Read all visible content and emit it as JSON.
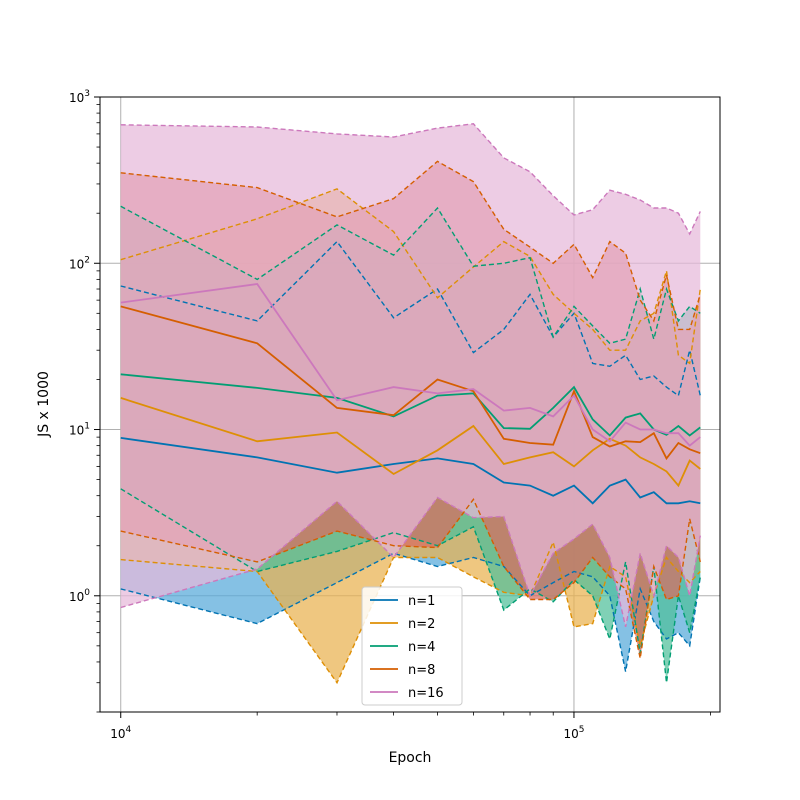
{
  "chart_data": {
    "type": "line",
    "xlabel": "Epoch",
    "ylabel": "JS x 1000",
    "x_scale": "log",
    "y_scale": "log",
    "xlim": [
      9000,
      210000
    ],
    "ylim": [
      0.2,
      1000
    ],
    "x_major_ticks": [
      10000,
      100000
    ],
    "x_major_tick_labels": [
      {
        "base": "10",
        "exp": "4"
      },
      {
        "base": "10",
        "exp": "5"
      }
    ],
    "x_minor_ticks": [
      20000,
      30000,
      40000,
      50000,
      60000,
      70000,
      80000,
      90000,
      200000
    ],
    "y_major_ticks": [
      1,
      10,
      100,
      1000
    ],
    "y_major_tick_labels": [
      {
        "base": "10",
        "exp": "0"
      },
      {
        "base": "10",
        "exp": "1"
      },
      {
        "base": "10",
        "exp": "2"
      },
      {
        "base": "10",
        "exp": "3"
      }
    ],
    "y_minor_ticks": [
      0.2,
      0.3,
      0.4,
      0.5,
      0.6,
      0.7,
      0.8,
      0.9,
      2,
      3,
      4,
      5,
      6,
      7,
      8,
      9,
      20,
      30,
      40,
      50,
      60,
      70,
      80,
      90,
      200,
      300,
      400,
      500,
      600,
      700,
      800,
      900
    ],
    "grid": true,
    "legend_position": "lower-center",
    "x": [
      10000,
      20000,
      30000,
      40000,
      50000,
      60000,
      70000,
      80000,
      90000,
      100000,
      110000,
      120000,
      130000,
      140000,
      150000,
      160000,
      170000,
      180000,
      190000
    ],
    "series": [
      {
        "name": "n=1",
        "color": "#0173b2",
        "fill_color": "#56a9d9",
        "values": [
          8.9,
          6.8,
          5.5,
          6.2,
          6.7,
          6.2,
          4.8,
          4.6,
          4.0,
          4.6,
          3.6,
          4.6,
          5.0,
          3.9,
          4.2,
          3.6,
          3.6,
          3.7,
          3.6
        ],
        "upper": [
          73,
          45,
          135,
          47,
          70,
          29,
          40,
          65,
          36,
          50,
          25,
          24,
          28,
          20,
          21,
          18,
          16,
          30,
          16
        ],
        "lower": [
          1.1,
          0.68,
          1.2,
          1.8,
          1.5,
          1.7,
          1.5,
          1.0,
          1.2,
          1.4,
          1.3,
          1.0,
          0.35,
          1.1,
          0.7,
          0.55,
          0.6,
          0.5,
          1.3
        ]
      },
      {
        "name": "n=2",
        "color": "#de8f05",
        "fill_color": "#e9b24f",
        "values": [
          15.5,
          8.5,
          9.6,
          5.4,
          7.5,
          10.5,
          6.2,
          6.8,
          7.3,
          6.0,
          7.5,
          8.8,
          8.0,
          6.8,
          6.2,
          5.6,
          4.6,
          6.5,
          5.8
        ],
        "upper": [
          105,
          185,
          280,
          155,
          62,
          95,
          135,
          110,
          65,
          50,
          40,
          30,
          30,
          45,
          50,
          90,
          28,
          25,
          70
        ],
        "lower": [
          1.65,
          1.4,
          0.3,
          1.7,
          1.7,
          1.3,
          1.05,
          1.0,
          2.1,
          0.65,
          0.68,
          1.5,
          1.3,
          0.5,
          1.0,
          1.7,
          1.4,
          1.2,
          1.4
        ]
      },
      {
        "name": "n=4",
        "color": "#029e73",
        "fill_color": "#4fbf9a",
        "values": [
          21.5,
          17.8,
          15.5,
          12.0,
          16.0,
          16.5,
          10.2,
          10.1,
          13.5,
          18.0,
          11.5,
          9.2,
          11.8,
          12.5,
          10.0,
          9.3,
          10.5,
          9.2,
          10.3
        ],
        "upper": [
          220,
          80,
          170,
          112,
          215,
          96,
          100,
          108,
          36,
          55,
          42,
          33,
          35,
          70,
          35,
          70,
          45,
          55,
          50
        ],
        "lower": [
          4.4,
          1.4,
          1.85,
          2.4,
          2.0,
          2.6,
          0.82,
          1.1,
          0.92,
          1.25,
          1.0,
          0.55,
          1.6,
          0.45,
          1.5,
          0.3,
          1.0,
          0.6,
          1.3
        ]
      },
      {
        "name": "n=8",
        "color": "#d55e00",
        "fill_color": "#d96c5f",
        "values": [
          55,
          33,
          13.5,
          12.2,
          20.0,
          17.0,
          8.8,
          8.3,
          8.1,
          17.0,
          9.0,
          7.9,
          8.5,
          8.4,
          9.5,
          6.7,
          8.3,
          7.6,
          7.2
        ],
        "upper": [
          350,
          285,
          190,
          245,
          410,
          310,
          160,
          125,
          100,
          130,
          82,
          135,
          115,
          60,
          45,
          85,
          40,
          40,
          65
        ],
        "lower": [
          2.45,
          1.6,
          2.45,
          2.0,
          1.95,
          3.8,
          1.5,
          0.95,
          0.95,
          1.2,
          1.7,
          1.3,
          1.1,
          0.42,
          1.5,
          0.95,
          1.0,
          2.9,
          1.6
        ]
      },
      {
        "name": "n=16",
        "color": "#cc78bc",
        "fill_color": "#e6b8da",
        "values": [
          58,
          75,
          15.0,
          18.0,
          16.5,
          17.5,
          13.0,
          13.5,
          12.0,
          16.0,
          10.0,
          8.5,
          11.0,
          10.0,
          10.0,
          9.5,
          9.5,
          8.0,
          9.0
        ],
        "upper": [
          680,
          660,
          600,
          575,
          650,
          690,
          430,
          355,
          255,
          195,
          210,
          275,
          260,
          240,
          215,
          215,
          200,
          150,
          205
        ],
        "lower": [
          0.85,
          1.45,
          3.7,
          1.7,
          3.9,
          2.95,
          3.0,
          1.0,
          1.8,
          2.2,
          2.7,
          1.7,
          0.65,
          1.8,
          1.0,
          2.0,
          1.7,
          1.0,
          2.3
        ]
      }
    ]
  }
}
